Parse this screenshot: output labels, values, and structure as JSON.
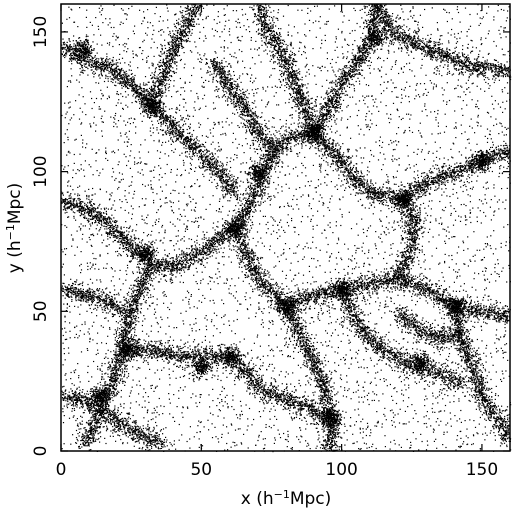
{
  "chart_data": {
    "type": "scatter",
    "title": "",
    "xlabel": "x (h",
    "ylabel": "y (h",
    "label_exponent": "−1",
    "label_unit": "Mpc)",
    "xlim": [
      0,
      160
    ],
    "ylim": [
      0,
      160
    ],
    "x_ticks": [
      0,
      50,
      100,
      150
    ],
    "y_ticks": [
      0,
      50,
      100,
      150
    ],
    "grid": false,
    "legend": "none",
    "marker_color": "#000000",
    "series": [
      {
        "description_values": "dark-matter particle positions (dense point cloud forming filaments and voids)",
        "filaments": [
          [
            [
              0,
              90
            ],
            [
              10,
              86
            ],
            [
              18,
              80
            ],
            [
              26,
              72
            ],
            [
              32,
              67
            ]
          ],
          [
            [
              32,
              67
            ],
            [
              40,
              66
            ],
            [
              48,
              70
            ],
            [
              56,
              76
            ],
            [
              62,
              80
            ]
          ],
          [
            [
              32,
              67
            ],
            [
              28,
              58
            ],
            [
              24,
              48
            ],
            [
              22,
              38
            ],
            [
              20,
              30
            ],
            [
              16,
              20
            ],
            [
              12,
              10
            ],
            [
              8,
              2
            ]
          ],
          [
            [
              22,
              38
            ],
            [
              32,
              36
            ],
            [
              42,
              34
            ],
            [
              52,
              34
            ],
            [
              60,
              34
            ]
          ],
          [
            [
              62,
              80
            ],
            [
              66,
              70
            ],
            [
              70,
              62
            ],
            [
              76,
              56
            ],
            [
              80,
              52
            ]
          ],
          [
            [
              80,
              52
            ],
            [
              90,
              56
            ],
            [
              100,
              58
            ],
            [
              110,
              60
            ],
            [
              120,
              62
            ]
          ],
          [
            [
              80,
              52
            ],
            [
              84,
              44
            ],
            [
              88,
              36
            ],
            [
              92,
              28
            ],
            [
              94,
              20
            ],
            [
              96,
              10
            ],
            [
              96,
              0
            ]
          ],
          [
            [
              62,
              80
            ],
            [
              68,
              90
            ],
            [
              72,
              100
            ],
            [
              76,
              108
            ],
            [
              80,
              112
            ],
            [
              90,
              114
            ]
          ],
          [
            [
              90,
              114
            ],
            [
              98,
              106
            ],
            [
              104,
              98
            ],
            [
              112,
              92
            ],
            [
              120,
              90
            ]
          ],
          [
            [
              90,
              114
            ],
            [
              96,
              124
            ],
            [
              100,
              132
            ],
            [
              106,
              140
            ],
            [
              110,
              148
            ],
            [
              112,
              160
            ]
          ],
          [
            [
              0,
              20
            ],
            [
              10,
              18
            ],
            [
              20,
              10
            ],
            [
              28,
              6
            ],
            [
              36,
              2
            ]
          ],
          [
            [
              120,
              62
            ],
            [
              130,
              58
            ],
            [
              140,
              52
            ],
            [
              150,
              50
            ],
            [
              160,
              48
            ]
          ],
          [
            [
              120,
              90
            ],
            [
              130,
              96
            ],
            [
              140,
              100
            ],
            [
              150,
              104
            ],
            [
              160,
              108
            ]
          ],
          [
            [
              120,
              62
            ],
            [
              124,
              72
            ],
            [
              126,
              82
            ],
            [
              122,
              90
            ]
          ],
          [
            [
              140,
              52
            ],
            [
              142,
              42
            ],
            [
              146,
              32
            ],
            [
              150,
              20
            ],
            [
              156,
              10
            ],
            [
              160,
              4
            ]
          ],
          [
            [
              0,
              145
            ],
            [
              8,
              140
            ],
            [
              16,
              138
            ],
            [
              24,
              132
            ],
            [
              32,
              124
            ]
          ],
          [
            [
              32,
              124
            ],
            [
              40,
              116
            ],
            [
              48,
              108
            ],
            [
              56,
              100
            ],
            [
              62,
              92
            ]
          ],
          [
            [
              32,
              124
            ],
            [
              36,
              134
            ],
            [
              40,
              144
            ],
            [
              44,
              152
            ],
            [
              48,
              160
            ]
          ],
          [
            [
              112,
              160
            ],
            [
              118,
              150
            ],
            [
              126,
              146
            ],
            [
              136,
              142
            ],
            [
              146,
              138
            ],
            [
              160,
              136
            ]
          ],
          [
            [
              70,
              160
            ],
            [
              74,
              150
            ],
            [
              80,
              140
            ],
            [
              84,
              130
            ],
            [
              90,
              114
            ]
          ],
          [
            [
              0,
              58
            ],
            [
              8,
              56
            ],
            [
              16,
              54
            ],
            [
              22,
              50
            ]
          ],
          [
            [
              60,
              34
            ],
            [
              66,
              28
            ],
            [
              72,
              22
            ],
            [
              80,
              18
            ],
            [
              88,
              16
            ],
            [
              96,
              10
            ]
          ],
          [
            [
              100,
              58
            ],
            [
              104,
              48
            ],
            [
              110,
              40
            ],
            [
              118,
              34
            ],
            [
              126,
              30
            ],
            [
              134,
              28
            ],
            [
              142,
              24
            ]
          ],
          [
            [
              54,
              140
            ],
            [
              60,
              130
            ],
            [
              66,
              122
            ],
            [
              70,
              114
            ],
            [
              76,
              108
            ]
          ],
          [
            [
              142,
              42
            ],
            [
              134,
              40
            ],
            [
              126,
              44
            ],
            [
              120,
              50
            ]
          ]
        ],
        "clusters": [
          [
            30,
            71
          ],
          [
            24,
            36
          ],
          [
            62,
            80
          ],
          [
            80,
            52
          ],
          [
            90,
            114
          ],
          [
            100,
            58
          ],
          [
            122,
            90
          ],
          [
            140,
            52
          ],
          [
            32,
            124
          ],
          [
            14,
            20
          ],
          [
            60,
            34
          ],
          [
            96,
            12
          ],
          [
            112,
            148
          ],
          [
            50,
            30
          ],
          [
            8,
            144
          ],
          [
            150,
            104
          ],
          [
            70,
            100
          ],
          [
            128,
            32
          ]
        ]
      }
    ]
  }
}
